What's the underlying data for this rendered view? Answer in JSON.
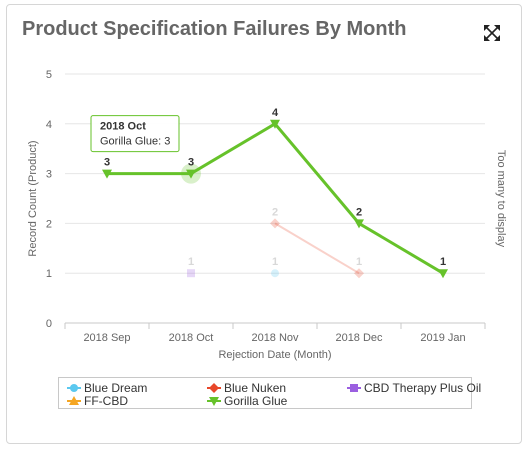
{
  "card": {
    "title": "Product Specification Failures By Month",
    "expand_icon": "expand-arrows-icon"
  },
  "chart_data": {
    "type": "line",
    "title": "Product Specification Failures By Month",
    "xlabel": "Rejection Date (Month)",
    "ylabel": "Record Count (Product)",
    "right_axis_label": "Too many to display",
    "categories": [
      "2018 Sep",
      "2018 Oct",
      "2018 Nov",
      "2018 Dec",
      "2019 Jan"
    ],
    "ylim": [
      0,
      5
    ],
    "yticks": [
      "0",
      "1",
      "2",
      "3",
      "4",
      "5"
    ],
    "grid": true,
    "legend_position": "bottom",
    "series": [
      {
        "name": "Blue Dream",
        "color": "#5bc8ef",
        "marker": "circle",
        "faded": true,
        "values": [
          null,
          null,
          1,
          null,
          null
        ]
      },
      {
        "name": "Blue Nuken",
        "color": "#e8472a",
        "marker": "diamond",
        "faded": true,
        "values": [
          null,
          null,
          2,
          1,
          null
        ]
      },
      {
        "name": "CBD Therapy Plus Oil",
        "color": "#9b5fe0",
        "marker": "square",
        "faded": true,
        "values": [
          null,
          1,
          null,
          null,
          null
        ]
      },
      {
        "name": "FF-CBD",
        "color": "#f5a623",
        "marker": "triangle",
        "faded": true,
        "values": [
          null,
          null,
          null,
          null,
          null
        ]
      },
      {
        "name": "Gorilla Glue",
        "color": "#66c22a",
        "marker": "triangle-down",
        "faded": false,
        "values": [
          3,
          3,
          4,
          2,
          1
        ]
      }
    ],
    "tooltip": {
      "title": "2018 Oct",
      "series": "Gorilla Glue",
      "text": "Gorilla Glue: 3",
      "category_index": 1
    }
  }
}
